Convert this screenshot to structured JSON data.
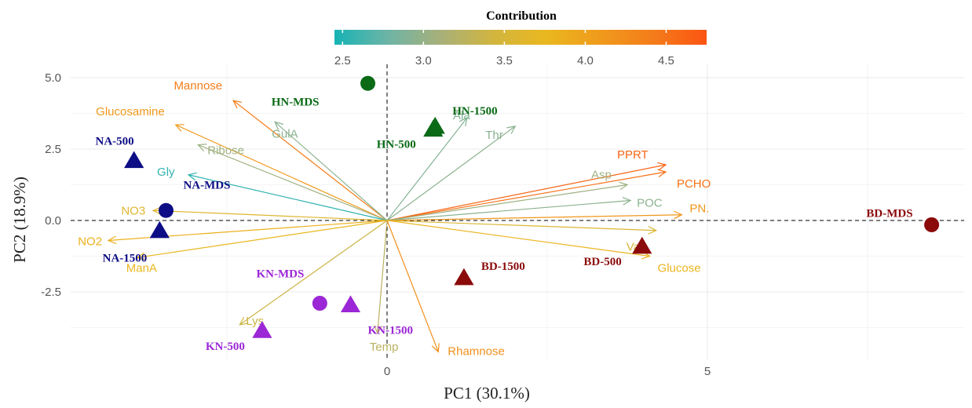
{
  "chart_data": {
    "type": "scatter",
    "subtype": "pca-biplot",
    "xlabel": "PC1 (30.1%)",
    "ylabel": "PC2 (18.9%)",
    "xlim": [
      -6.0,
      10.3
    ],
    "ylim": [
      -4.7,
      5.6
    ],
    "x_ticks": [
      0,
      5
    ],
    "y_ticks": [
      5.0,
      2.5,
      0.0,
      -2.5
    ],
    "y_tick_labels": [
      "5.0",
      "2.5",
      "0.0",
      "-2.5"
    ],
    "grid": true,
    "reference_lines": {
      "x": 0,
      "y": 0,
      "style": "dashed"
    },
    "legend": {
      "title": "Contribution",
      "placement": "top-center",
      "type": "colorbar",
      "range": [
        2.45,
        4.75
      ],
      "ticks": [
        2.5,
        3.0,
        3.5,
        4.0,
        4.5
      ],
      "tick_labels": [
        "2.5",
        "3.0",
        "3.5",
        "4.0",
        "4.5"
      ],
      "colors": [
        "#17b3b5",
        "#6db4a6",
        "#a8b079",
        "#d2b53e",
        "#eab71f",
        "#f09a1c",
        "#f47c1a",
        "#fb5412"
      ]
    },
    "variables": [
      {
        "name": "Mannose",
        "x": -2.4,
        "y": 4.2,
        "contribution": 4.4
      },
      {
        "name": "Glucosamine",
        "x": -3.3,
        "y": 3.35,
        "contribution": 4.1
      },
      {
        "name": "GulA",
        "x": -1.75,
        "y": 3.45,
        "contribution": 2.95
      },
      {
        "name": "Ribose",
        "x": -2.95,
        "y": 2.65,
        "contribution": 3.05
      },
      {
        "name": "Gly",
        "x": -3.1,
        "y": 1.6,
        "contribution": 2.55
      },
      {
        "name": "NO3",
        "x": -3.65,
        "y": 0.35,
        "contribution": 3.6
      },
      {
        "name": "NO2",
        "x": -4.35,
        "y": -0.7,
        "contribution": 3.85
      },
      {
        "name": "ManA",
        "x": -3.9,
        "y": -1.3,
        "contribution": 3.75
      },
      {
        "name": "Lys",
        "x": -2.3,
        "y": -3.65,
        "contribution": 3.4
      },
      {
        "name": "Temp",
        "x": -0.15,
        "y": -3.95,
        "contribution": 3.25
      },
      {
        "name": "Rhamnose",
        "x": 0.8,
        "y": -4.6,
        "contribution": 4.2
      },
      {
        "name": "Ala",
        "x": 1.25,
        "y": 3.6,
        "contribution": 2.9
      },
      {
        "name": "Thr",
        "x": 2.0,
        "y": 3.3,
        "contribution": 2.95
      },
      {
        "name": "PPRT",
        "x": 4.35,
        "y": 1.95,
        "contribution": 4.6
      },
      {
        "name": "PCHO",
        "x": 4.35,
        "y": 1.7,
        "contribution": 4.5
      },
      {
        "name": "Asp",
        "x": 3.75,
        "y": 1.25,
        "contribution": 3.05
      },
      {
        "name": "POC",
        "x": 3.8,
        "y": 0.7,
        "contribution": 2.95
      },
      {
        "name": "PN.",
        "x": 4.6,
        "y": 0.2,
        "contribution": 4.15
      },
      {
        "name": "Val",
        "x": 4.2,
        "y": -0.35,
        "contribution": 3.55
      },
      {
        "name": "Glucose",
        "x": 4.1,
        "y": -1.25,
        "contribution": 3.8
      }
    ],
    "observations": [
      {
        "name": "HN-MDS",
        "x": -0.3,
        "y": 4.8,
        "shape": "circle",
        "group": "HN",
        "color": "#0a6a16"
      },
      {
        "name": "HN-1500",
        "x": 0.75,
        "y": 3.3,
        "shape": "triangle",
        "group": "HN",
        "color": "#0a6a16"
      },
      {
        "name": "HN-500",
        "x": 0.72,
        "y": 3.2,
        "shape": "triangle",
        "group": "HN",
        "color": "#0a6a16"
      },
      {
        "name": "NA-500",
        "x": -3.95,
        "y": 2.1,
        "shape": "triangle",
        "group": "NA",
        "color": "#0d0d85"
      },
      {
        "name": "NA-MDS",
        "x": -3.45,
        "y": 0.35,
        "shape": "circle",
        "group": "NA",
        "color": "#0d0d85"
      },
      {
        "name": "NA-1500",
        "x": -3.55,
        "y": -0.35,
        "shape": "triangle",
        "group": "NA",
        "color": "#0d0d85"
      },
      {
        "name": "BD-MDS",
        "x": 8.5,
        "y": -0.15,
        "shape": "circle",
        "group": "BD",
        "color": "#8b0a0a"
      },
      {
        "name": "BD-500",
        "x": 3.98,
        "y": -0.9,
        "shape": "triangle",
        "group": "BD",
        "color": "#8b0a0a"
      },
      {
        "name": "BD-1500",
        "x": 1.2,
        "y": -2.0,
        "shape": "triangle",
        "group": "BD",
        "color": "#8b0a0a"
      },
      {
        "name": "KN-MDS",
        "x": -1.05,
        "y": -2.9,
        "shape": "circle",
        "group": "KN",
        "color": "#9b27d6"
      },
      {
        "name": "KN-1500",
        "x": -0.57,
        "y": -2.95,
        "shape": "triangle",
        "group": "KN",
        "color": "#9b27d6"
      },
      {
        "name": "KN-500",
        "x": -1.95,
        "y": -3.85,
        "shape": "triangle",
        "group": "KN",
        "color": "#9b27d6"
      }
    ]
  }
}
